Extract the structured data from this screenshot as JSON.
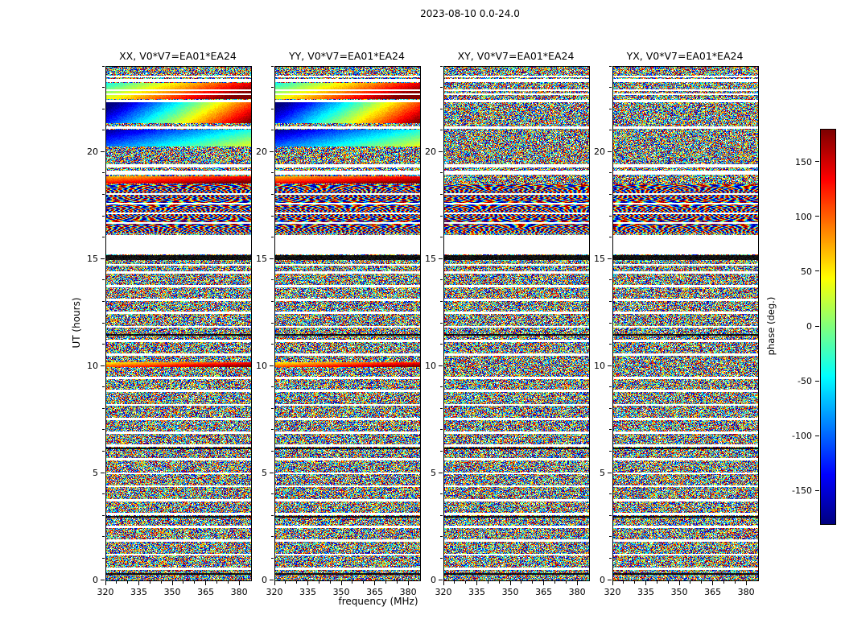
{
  "figure": {
    "title": "2023-08-10 0.0-24.0",
    "xlabel": "frequency (MHz)",
    "ylabel": "UT (hours)",
    "colorbar_label": "phase (deg.)"
  },
  "chart_data": {
    "type": "heatmap",
    "title": "2023-08-10 0.0-24.0",
    "description": "Interferometric visibility phase versus UT time and frequency for baseline V0*V7=EA01*EA24 on 2023-08-10, shown for four polarization products (XX, YY, XY, YX). Values are noise-like phases spanning -180 to 180 degrees with flagged (white) and blanked (black) time rows; smooth phase-gradient bands appear in XX and YY near 20-23 h and near 10 h, and fringe-like wave patterns appear near 16.3-18.5 h.",
    "panels": [
      {
        "pol": "XX",
        "title": "XX, V0*V7=EA01*EA24"
      },
      {
        "pol": "YY",
        "title": "YY, V0*V7=EA01*EA24"
      },
      {
        "pol": "XY",
        "title": "XY, V0*V7=EA01*EA24"
      },
      {
        "pol": "YX",
        "title": "YX, V0*V7=EA01*EA24"
      }
    ],
    "x": {
      "label": "frequency (MHz)",
      "range": [
        320,
        385
      ],
      "ticks": [
        320,
        335,
        350,
        365,
        380
      ],
      "minor_ticks": [
        325,
        330,
        340,
        345,
        355,
        360,
        370,
        375
      ]
    },
    "y": {
      "label": "UT (hours)",
      "range": [
        0,
        24
      ],
      "ticks": [
        0,
        5,
        10,
        15,
        20
      ],
      "minor_step": 1
    },
    "colorbar": {
      "label": "phase (deg.)",
      "range": [
        -180,
        180
      ],
      "ticks": [
        150,
        100,
        50,
        0,
        -50,
        -100,
        -150
      ],
      "colormap": "jet"
    },
    "render": {
      "white_gaps_hours": [
        [
          15.25,
          16.12
        ],
        [
          23.5,
          23.6
        ],
        [
          23.28,
          23.42
        ],
        [
          22.86,
          22.94
        ],
        [
          22.68,
          22.76
        ],
        [
          22.36,
          22.44
        ],
        [
          21.1,
          21.2
        ],
        [
          19.3,
          19.45
        ],
        [
          18.95,
          19.15
        ],
        [
          18.02,
          18.1
        ],
        [
          17.56,
          17.64
        ],
        [
          17.11,
          17.19
        ],
        [
          16.66,
          16.74
        ],
        [
          14.7,
          14.8
        ],
        [
          14.35,
          14.45
        ],
        [
          13.7,
          13.8
        ],
        [
          13.05,
          13.15
        ],
        [
          12.45,
          12.55
        ],
        [
          11.8,
          11.9
        ],
        [
          11.15,
          11.25
        ],
        [
          10.5,
          10.6
        ],
        [
          9.4,
          9.5
        ],
        [
          8.8,
          8.9
        ],
        [
          8.15,
          8.25
        ],
        [
          7.5,
          7.6
        ],
        [
          6.85,
          6.95
        ],
        [
          6.25,
          6.35
        ],
        [
          5.6,
          5.7
        ],
        [
          4.95,
          5.05
        ],
        [
          4.35,
          4.45
        ],
        [
          3.7,
          3.8
        ],
        [
          3.05,
          3.15
        ],
        [
          2.45,
          2.55
        ],
        [
          1.8,
          1.9
        ],
        [
          1.15,
          1.25
        ],
        [
          0.5,
          0.6
        ]
      ],
      "black_rows_hours": [
        [
          14.97,
          15.2
        ],
        [
          11.42,
          11.52
        ],
        [
          6.13,
          6.2
        ],
        [
          2.93,
          3.0
        ],
        [
          0.27,
          0.34
        ]
      ],
      "smooth_band_pols": [
        "XX",
        "YY"
      ],
      "smooth_bands": [
        {
          "h0": 22.5,
          "h1": 23.25,
          "t0": 0.5,
          "t1": 1.0
        },
        {
          "h0": 21.35,
          "h1": 22.33,
          "t0": 0.05,
          "t1": 0.92
        },
        {
          "h0": 20.28,
          "h1": 21.08,
          "t0": 0.12,
          "t1": 0.5
        },
        {
          "h0": 18.55,
          "h1": 18.9,
          "t0": 0.78,
          "t1": 0.95
        },
        {
          "h0": 9.95,
          "h1": 10.2,
          "t0": 0.72,
          "t1": 0.95
        }
      ],
      "wave_band_hours": [
        16.25,
        18.5
      ]
    }
  }
}
